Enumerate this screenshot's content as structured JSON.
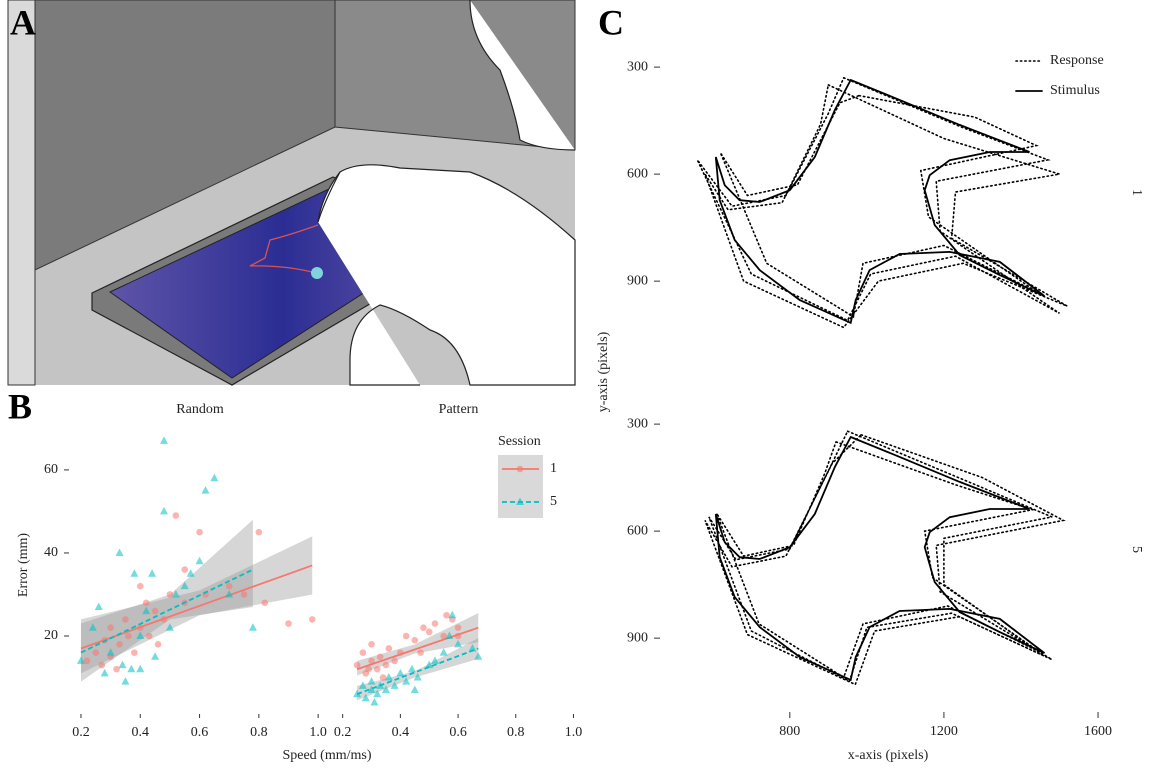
{
  "panel_a": {
    "label": "A"
  },
  "chart_data": [
    {
      "type": "scatter",
      "panel_label": "B",
      "x_label": "Speed (mm/ms)",
      "y_label": "Error (mm)",
      "legend_title": "Session",
      "xlim": [
        0.163,
        1.04
      ],
      "ylim": [
        1.7,
        72.5
      ],
      "xticks": [
        0.2,
        0.4,
        0.6,
        0.8,
        {
          "value": 1,
          "label": "1.0"
        }
      ],
      "yticks": [
        20,
        40,
        60
      ],
      "facets": [
        {
          "title": "Random",
          "series": [
            {
              "name": "1",
              "color": "#f8766d",
              "marker": "circle",
              "line_style": "solid",
              "x": [
                0.22,
                0.25,
                0.27,
                0.28,
                0.3,
                0.32,
                0.33,
                0.35,
                0.36,
                0.38,
                0.4,
                0.42,
                0.43,
                0.45,
                0.46,
                0.48,
                0.5,
                0.52,
                0.55,
                0.6,
                0.62,
                0.7,
                0.75,
                0.8,
                0.82,
                0.9,
                0.98,
                0.55,
                0.4,
                0.3
              ],
              "values": [
                14,
                16,
                13,
                19,
                22,
                12,
                18,
                24,
                20,
                16,
                22,
                28,
                20,
                26,
                18,
                24,
                30,
                49,
                28,
                45,
                30,
                32,
                30,
                45,
                28,
                23,
                24,
                36,
                32,
                15
              ],
              "trend": {
                "x": [
                  0.2,
                  0.98
                ],
                "values": [
                  17,
                  37
                ],
                "band_x": [
                  0.2,
                  0.6,
                  0.98
                ],
                "band_low": [
                  11,
                  25,
                  30
                ],
                "band_high": [
                  24,
                  31,
                  44
                ]
              }
            },
            {
              "name": "5",
              "color": "#00bfc4",
              "marker": "triangle",
              "line_style": "dashed",
              "x": [
                0.2,
                0.24,
                0.26,
                0.28,
                0.3,
                0.33,
                0.35,
                0.37,
                0.38,
                0.4,
                0.42,
                0.44,
                0.45,
                0.48,
                0.48,
                0.5,
                0.52,
                0.55,
                0.57,
                0.6,
                0.62,
                0.65,
                0.7,
                0.78,
                0.4,
                0.34
              ],
              "values": [
                14,
                22,
                27,
                11,
                16,
                40,
                9,
                12,
                35,
                20,
                26,
                35,
                15,
                50,
                67,
                22,
                30,
                32,
                35,
                38,
                55,
                58,
                30,
                22,
                12,
                13
              ],
              "trend": {
                "x": [
                  0.2,
                  0.78
                ],
                "values": [
                  16,
                  36
                ],
                "band_x": [
                  0.2,
                  0.5,
                  0.78
                ],
                "band_low": [
                  9,
                  24,
                  27
                ],
                "band_high": [
                  23,
                  30,
                  48
                ]
              }
            }
          ]
        },
        {
          "title": "Pattern",
          "series": [
            {
              "name": "1",
              "color": "#f8766d",
              "marker": "circle",
              "line_style": "solid",
              "x": [
                0.25,
                0.27,
                0.28,
                0.3,
                0.3,
                0.32,
                0.33,
                0.35,
                0.36,
                0.38,
                0.4,
                0.42,
                0.45,
                0.48,
                0.5,
                0.52,
                0.55,
                0.56,
                0.58,
                0.6,
                0.34,
                0.29,
                0.47,
                0.6
              ],
              "values": [
                13,
                16,
                11,
                14,
                18,
                12,
                15,
                13,
                17,
                14,
                16,
                20,
                19,
                22,
                21,
                23,
                20,
                25,
                24,
                22,
                10,
                12,
                16,
                20
              ],
              "trend": {
                "x": [
                  0.25,
                  0.67
                ],
                "values": [
                  12,
                  22
                ],
                "band_x": [
                  0.25,
                  0.45,
                  0.67
                ],
                "band_low": [
                  10.5,
                  15.8,
                  18.5
                ],
                "band_high": [
                  14,
                  18,
                  25.5
                ]
              }
            },
            {
              "name": "5",
              "color": "#00bfc4",
              "marker": "triangle",
              "line_style": "dashed",
              "x": [
                0.25,
                0.27,
                0.28,
                0.3,
                0.3,
                0.32,
                0.33,
                0.35,
                0.36,
                0.38,
                0.4,
                0.42,
                0.44,
                0.46,
                0.5,
                0.52,
                0.55,
                0.57,
                0.58,
                0.6,
                0.65,
                0.67,
                0.31,
                0.45
              ],
              "values": [
                6,
                8,
                5,
                7,
                9,
                6,
                8,
                7,
                10,
                8,
                11,
                9,
                12,
                10,
                13,
                14,
                16,
                20,
                25,
                18,
                17,
                15,
                4,
                7
              ],
              "trend": {
                "x": [
                  0.25,
                  0.67
                ],
                "values": [
                  6,
                  17
                ],
                "band_x": [
                  0.25,
                  0.45,
                  0.67
                ],
                "band_low": [
                  4.5,
                  10,
                  14.5
                ],
                "band_high": [
                  8,
                  11.5,
                  19.5
                ]
              }
            }
          ]
        }
      ]
    },
    {
      "type": "line",
      "panel_label": "C",
      "x_label": "x-axis (pixels)",
      "y_label": "y-axis (pixels)",
      "xlim": [
        541,
        1657
      ],
      "ylim": [
        224,
        1079
      ],
      "y_reversed": true,
      "xticks": [
        800,
        1200,
        1600
      ],
      "yticks": [
        300,
        600,
        900
      ],
      "facets": [
        {
          "title": "1",
          "series": [
            {
              "name": "Response",
              "style": "dotted",
              "x": [
                940,
                1250,
                1470,
                1180,
                1190,
                1500,
                1230,
                1010,
                950,
                700,
                560,
                650,
                790,
                900,
                940,
                null,
                980,
                1280,
                1440,
                1140,
                1160,
                1440,
                1200,
                990,
                965,
                740,
                620,
                690,
                820,
                930,
                980,
                null,
                900,
                1200,
                1500,
                1230,
                1220,
                1520,
                1250,
                1030,
                940,
                680,
                580,
                640,
                780,
                880,
                900
              ],
              "values": [
                330,
                470,
                560,
                620,
                760,
                990,
                830,
                880,
                1010,
                880,
                560,
                690,
                660,
                430,
                330,
                null,
                380,
                440,
                520,
                590,
                720,
                930,
                800,
                850,
                1000,
                850,
                540,
                660,
                630,
                400,
                380,
                null,
                350,
                500,
                600,
                650,
                780,
                970,
                850,
                900,
                1030,
                900,
                600,
                700,
                680,
                460,
                350
              ]
            },
            {
              "name": "Stimulus",
              "style": "solid",
              "x": [
                958,
                1085,
                1241,
                1422,
                1319,
                1215,
                1163,
                1150,
                1176,
                1241,
                1345,
                1461,
                1345,
                1215,
                1085,
                1007,
                971,
                958,
                826,
                722,
                657,
                618,
                608,
                631,
                670,
                722,
                800,
                865,
                917,
                958
              ],
              "values": [
                336,
                392,
                462,
                538,
                538,
                561,
                603,
                645,
                743,
                827,
                883,
                942,
                846,
                818,
                824,
                869,
                953,
                1017,
                953,
                869,
                785,
                673,
                552,
                631,
                673,
                678,
                645,
                552,
                420,
                336
              ]
            }
          ]
        },
        {
          "title": "5",
          "series": [
            {
              "name": "Response",
              "style": "dotted",
              "x": [
                950,
                1260,
                1480,
                1200,
                1200,
                1460,
                1220,
                1000,
                955,
                700,
                590,
                660,
                800,
                905,
                950,
                null,
                920,
                1230,
                1430,
                1150,
                1170,
                1450,
                1210,
                990,
                940,
                720,
                610,
                680,
                810,
                890,
                920,
                null,
                985,
                1300,
                1510,
                1180,
                1190,
                1480,
                1240,
                1020,
                970,
                690,
                580,
                650,
                790,
                910,
                985
              ],
              "values": [
                320,
                460,
                560,
                620,
                750,
                950,
                830,
                870,
                1020,
                880,
                560,
                680,
                650,
                420,
                320,
                null,
                350,
                470,
                540,
                600,
                730,
                940,
                810,
                860,
                1010,
                860,
                550,
                670,
                640,
                440,
                350,
                null,
                330,
                450,
                570,
                640,
                770,
                960,
                840,
                880,
                1030,
                890,
                570,
                700,
                670,
                410,
                330
              ]
            },
            {
              "name": "Stimulus",
              "style": "solid",
              "x": [
                958,
                1085,
                1241,
                1422,
                1319,
                1215,
                1163,
                1150,
                1176,
                1241,
                1345,
                1461,
                1345,
                1215,
                1085,
                1007,
                971,
                958,
                826,
                722,
                657,
                618,
                608,
                631,
                670,
                722,
                800,
                865,
                917,
                958
              ],
              "values": [
                336,
                392,
                462,
                538,
                538,
                561,
                603,
                645,
                743,
                827,
                883,
                942,
                846,
                818,
                824,
                869,
                953,
                1017,
                953,
                869,
                785,
                673,
                552,
                631,
                673,
                678,
                645,
                552,
                420,
                336
              ]
            }
          ]
        }
      ]
    }
  ]
}
